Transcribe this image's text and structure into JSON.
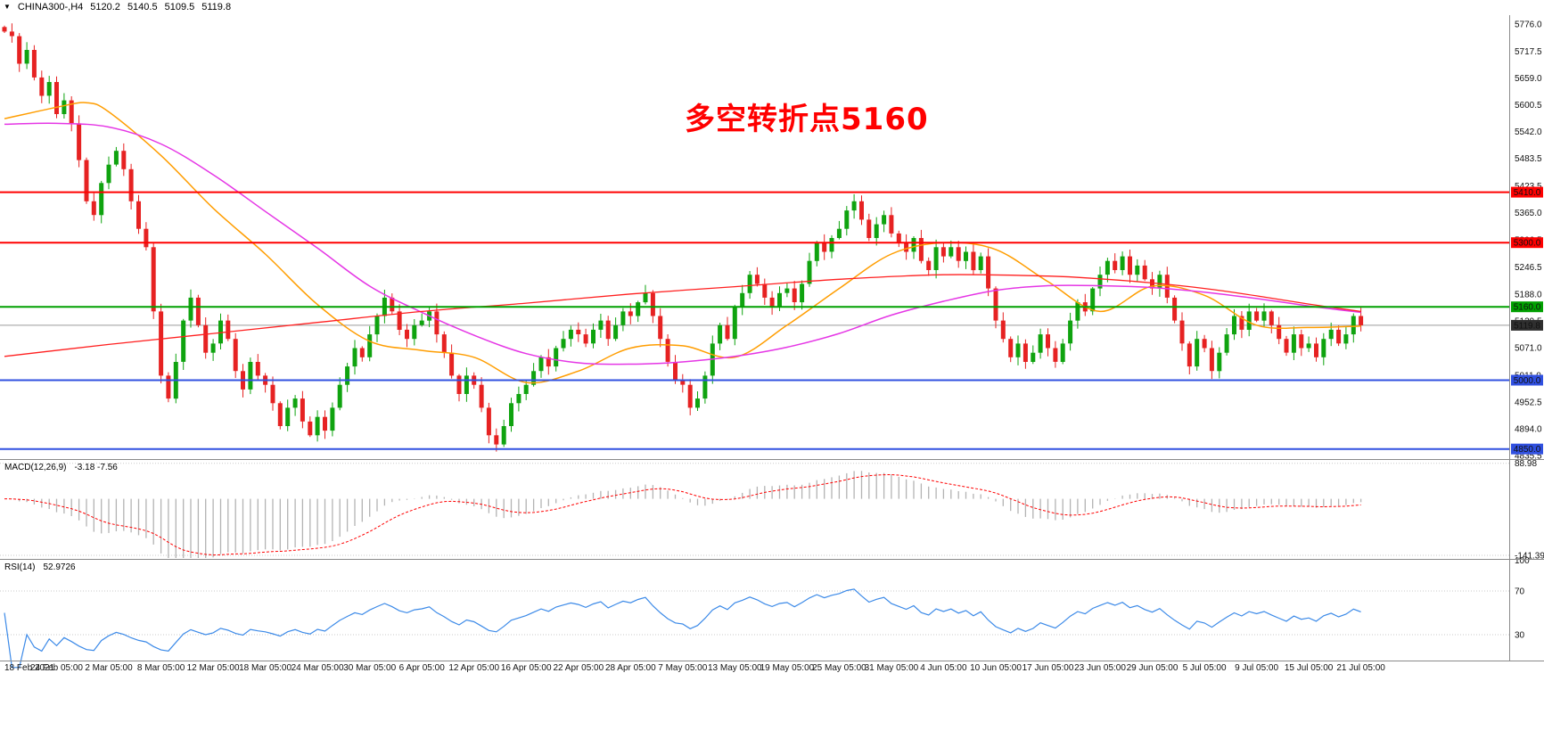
{
  "info_bar": {
    "dropdown_icon": "▼",
    "symbol": "CHINA300-,H4",
    "open": "5120.2",
    "high": "5140.5",
    "low": "5109.5",
    "close": "5119.8"
  },
  "annotation": {
    "text": "多空转折点5160",
    "color": "#ff0000"
  },
  "colors": {
    "bull": "#0fa30f",
    "bear": "#e62222",
    "macd_hist": "#b3b3b3",
    "macd_signal": "#ff0000",
    "rsi": "#3c8ae8",
    "divider": "#8a8a8a",
    "current_line": "#9a9a9a",
    "dotted_level": "#c8c8c8"
  },
  "y_axis": {
    "ticks": [
      "5776.0",
      "5717.5",
      "5659.0",
      "5600.5",
      "5542.0",
      "5483.5",
      "5423.5",
      "5365.0",
      "5306.5",
      "5246.5",
      "5188.0",
      "5129.5",
      "5071.0",
      "5011.0",
      "4952.5",
      "4894.0",
      "4835.5"
    ]
  },
  "levels": [
    {
      "label": "5410.0",
      "price": 5410.0,
      "color": "#ff0000",
      "width": 2
    },
    {
      "label": "5300.0",
      "price": 5300.0,
      "color": "#ff0000",
      "width": 2
    },
    {
      "label": "5160.0",
      "price": 5160.0,
      "color": "#00a000",
      "width": 2
    },
    {
      "label": "5000.0",
      "price": 5000.0,
      "color": "#3050e0",
      "width": 2
    },
    {
      "label": "4850.0",
      "price": 4850.0,
      "color": "#3050e0",
      "width": 2
    }
  ],
  "current_price": {
    "value": 5119.8,
    "label": "5119.8",
    "tag_color": "#2f2f2f"
  },
  "chart_data": {
    "type": "candlestick",
    "symbol": "CHINA300-",
    "timeframe": "H4",
    "price_range": [
      4832,
      5790
    ],
    "first_open": 5770,
    "candles_per_label": 7,
    "x_labels": [
      "18 Feb 2021",
      "24 Feb 05:00",
      "2 Mar 05:00",
      "8 Mar 05:00",
      "12 Mar 05:00",
      "18 Mar 05:00",
      "24 Mar 05:00",
      "30 Mar 05:00",
      "6 Apr 05:00",
      "12 Apr 05:00",
      "16 Apr 05:00",
      "22 Apr 05:00",
      "28 Apr 05:00",
      "7 May 05:00",
      "13 May 05:00",
      "19 May 05:00",
      "25 May 05:00",
      "31 May 05:00",
      "4 Jun 05:00",
      "10 Jun 05:00",
      "17 Jun 05:00",
      "23 Jun 05:00",
      "29 Jun 05:00",
      "5 Jul 05:00",
      "9 Jul 05:00",
      "15 Jul 05:00",
      "21 Jul 05:00"
    ],
    "closes": [
      5760,
      5750,
      5690,
      5720,
      5660,
      5620,
      5650,
      5580,
      5610,
      5560,
      5480,
      5390,
      5360,
      5430,
      5470,
      5500,
      5460,
      5390,
      5330,
      5290,
      5150,
      5010,
      4960,
      5040,
      5130,
      5180,
      5120,
      5060,
      5080,
      5130,
      5090,
      5020,
      4980,
      5040,
      5010,
      4990,
      4950,
      4900,
      4940,
      4960,
      4910,
      4880,
      4920,
      4890,
      4940,
      4990,
      5030,
      5070,
      5050,
      5100,
      5140,
      5180,
      5150,
      5110,
      5090,
      5120,
      5130,
      5150,
      5100,
      5060,
      5010,
      4970,
      5010,
      4990,
      4940,
      4880,
      4860,
      4900,
      4950,
      4970,
      4990,
      5020,
      5050,
      5030,
      5070,
      5090,
      5110,
      5100,
      5080,
      5110,
      5130,
      5090,
      5120,
      5150,
      5140,
      5170,
      5190,
      5140,
      5090,
      5040,
      5000,
      4990,
      4940,
      4960,
      5010,
      5080,
      5120,
      5090,
      5160,
      5190,
      5230,
      5210,
      5180,
      5160,
      5190,
      5200,
      5170,
      5210,
      5260,
      5300,
      5280,
      5310,
      5330,
      5370,
      5390,
      5350,
      5310,
      5340,
      5360,
      5320,
      5300,
      5280,
      5310,
      5260,
      5240,
      5290,
      5270,
      5290,
      5260,
      5280,
      5240,
      5270,
      5200,
      5130,
      5090,
      5050,
      5080,
      5040,
      5060,
      5100,
      5070,
      5040,
      5080,
      5130,
      5170,
      5150,
      5200,
      5230,
      5260,
      5240,
      5270,
      5230,
      5250,
      5220,
      5200,
      5230,
      5180,
      5130,
      5080,
      5030,
      5090,
      5070,
      5020,
      5060,
      5100,
      5140,
      5110,
      5150,
      5130,
      5150,
      5120,
      5090,
      5060,
      5100,
      5070,
      5080,
      5050,
      5090,
      5110,
      5080,
      5100,
      5140,
      5119.8
    ],
    "moving_averages": [
      {
        "name": "ma-fast-orange",
        "color": "#ff9d00",
        "width": 1.5,
        "points": [
          [
            0,
            5570
          ],
          [
            7,
            5595
          ],
          [
            11,
            5605
          ],
          [
            14,
            5585
          ],
          [
            21,
            5490
          ],
          [
            28,
            5375
          ],
          [
            35,
            5275
          ],
          [
            42,
            5165
          ],
          [
            49,
            5085
          ],
          [
            56,
            5065
          ],
          [
            63,
            5050
          ],
          [
            70,
            4995
          ],
          [
            77,
            5020
          ],
          [
            84,
            5070
          ],
          [
            91,
            5075
          ],
          [
            98,
            5050
          ],
          [
            105,
            5120
          ],
          [
            112,
            5200
          ],
          [
            119,
            5275
          ],
          [
            126,
            5300
          ],
          [
            133,
            5285
          ],
          [
            140,
            5215
          ],
          [
            147,
            5150
          ],
          [
            154,
            5205
          ],
          [
            161,
            5185
          ],
          [
            168,
            5120
          ],
          [
            175,
            5115
          ],
          [
            182,
            5118
          ]
        ]
      },
      {
        "name": "ma-mid-magenta",
        "color": "#e536e5",
        "width": 1.5,
        "points": [
          [
            0,
            5558
          ],
          [
            7,
            5560
          ],
          [
            14,
            5552
          ],
          [
            21,
            5515
          ],
          [
            28,
            5448
          ],
          [
            35,
            5368
          ],
          [
            42,
            5288
          ],
          [
            49,
            5205
          ],
          [
            56,
            5148
          ],
          [
            63,
            5098
          ],
          [
            70,
            5058
          ],
          [
            77,
            5038
          ],
          [
            84,
            5035
          ],
          [
            91,
            5040
          ],
          [
            98,
            5052
          ],
          [
            105,
            5072
          ],
          [
            112,
            5102
          ],
          [
            119,
            5142
          ],
          [
            126,
            5172
          ],
          [
            133,
            5196
          ],
          [
            140,
            5206
          ],
          [
            147,
            5206
          ],
          [
            154,
            5202
          ],
          [
            161,
            5192
          ],
          [
            168,
            5178
          ],
          [
            175,
            5162
          ],
          [
            182,
            5148
          ]
        ]
      },
      {
        "name": "ma-slow-red",
        "color": "#ff2020",
        "width": 1.3,
        "points": [
          [
            0,
            5052
          ],
          [
            14,
            5078
          ],
          [
            28,
            5102
          ],
          [
            42,
            5126
          ],
          [
            56,
            5150
          ],
          [
            70,
            5168
          ],
          [
            84,
            5188
          ],
          [
            98,
            5204
          ],
          [
            112,
            5220
          ],
          [
            126,
            5230
          ],
          [
            140,
            5227
          ],
          [
            147,
            5221
          ],
          [
            154,
            5212
          ],
          [
            161,
            5200
          ],
          [
            168,
            5184
          ],
          [
            175,
            5166
          ],
          [
            182,
            5150
          ]
        ]
      }
    ],
    "macd": {
      "label": "MACD(12,26,9)",
      "values_label": "-3.18 -7.56",
      "fast": 12,
      "slow": 26,
      "signal": 9,
      "axis_max": "88.98",
      "axis_min": "-141.39",
      "range": [
        -148,
        95
      ]
    },
    "rsi": {
      "label": "RSI(14)",
      "value_label": "52.9726",
      "period": 14,
      "levels": [
        70,
        30
      ],
      "axis_ticks": [
        "100",
        "70",
        "30"
      ]
    }
  }
}
